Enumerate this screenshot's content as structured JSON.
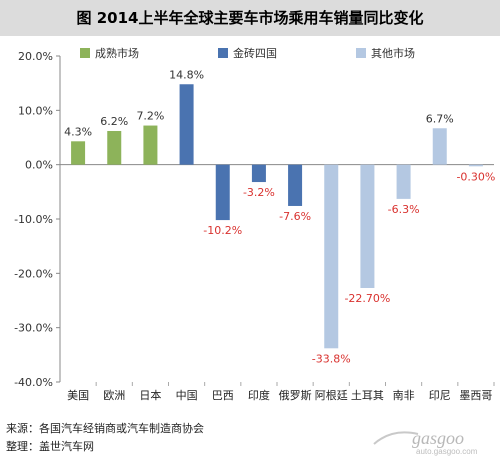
{
  "chart_data": {
    "type": "bar",
    "title": "图  2014上半年全球主要车市场乘用车销量同比变化",
    "categories": [
      "美国",
      "欧洲",
      "日本",
      "中国",
      "巴西",
      "印度",
      "俄罗斯",
      "阿根廷",
      "土耳其",
      "南非",
      "印尼",
      "墨西哥"
    ],
    "values": [
      4.3,
      6.2,
      7.2,
      14.8,
      -10.2,
      -3.2,
      -7.6,
      -33.8,
      -22.7,
      -6.3,
      6.7,
      -0.3
    ],
    "value_labels": [
      "4.3%",
      "6.2%",
      "7.2%",
      "14.8%",
      "-10.2%",
      "-3.2%",
      "-7.6%",
      "-33.8%",
      "-22.70%",
      "-6.3%",
      "6.7%",
      "-0.30%"
    ],
    "groups": [
      0,
      0,
      0,
      1,
      1,
      1,
      1,
      2,
      2,
      2,
      2,
      2
    ],
    "legend": [
      {
        "name": "成熟市场",
        "color": "#8db35a"
      },
      {
        "name": "金砖四国",
        "color": "#4a73b0"
      },
      {
        "name": "其他市场",
        "color": "#b4c8e2"
      }
    ],
    "legend_position": "top",
    "ylim": [
      -40,
      20
    ],
    "yticks": [
      20,
      10,
      0,
      -10,
      -20,
      -30,
      -40
    ],
    "ytick_labels": [
      "20.0%",
      "10.0%",
      "0.0%",
      "-10.0%",
      "-20.0%",
      "-30.0%",
      "-40.0%"
    ],
    "grid": false,
    "positive_label_color": "#333333",
    "negative_label_color": "#d9322f"
  },
  "footer": {
    "source": "来源：各国汽车经销商或汽车制造商协会",
    "compiled": "整理：盖世汽车网"
  },
  "watermark": {
    "brand": "gasgoo",
    "url": "auto.gasgoo.com"
  }
}
